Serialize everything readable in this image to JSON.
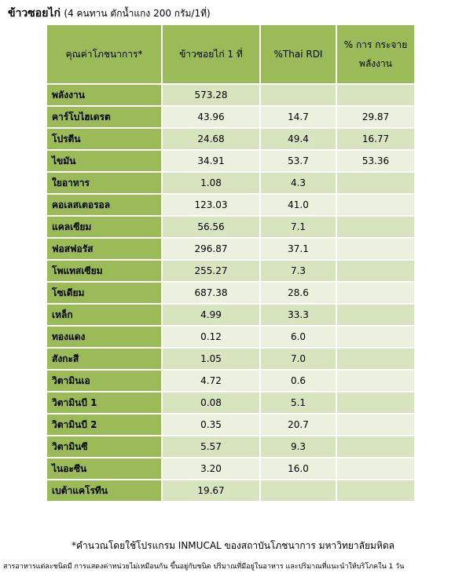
{
  "header": {
    "title": "ข้าวซอยไก่",
    "subtitle": "(4 คนทาน ตักน้ำแกง 200 กรัม/1ที่)"
  },
  "table": {
    "header": [
      "คุณค่าโภชนาการ*",
      "ข้าวซอยไก่ 1 ที่",
      "%Thai RDI",
      "% การ กระจาย พลังงาน"
    ],
    "rows": [
      [
        "พลังงาน",
        "573.28",
        null,
        null
      ],
      [
        "คาร์โบไฮเดรต",
        "43.96",
        "14.7",
        "29.87"
      ],
      [
        "โปรตีน",
        "24.68",
        "49.4",
        "16.77"
      ],
      [
        "ไขมัน",
        "34.91",
        "53.7",
        "53.36"
      ],
      [
        "ใยอาหาร",
        "1.08",
        "4.3",
        null
      ],
      [
        "คอเลสเตอรอล",
        "123.03",
        "41.0",
        null
      ],
      [
        "แคลเซียม",
        "56.56",
        "7.1",
        null
      ],
      [
        "ฟอสฟอรัส",
        "296.87",
        "37.1",
        null
      ],
      [
        "โพแทสเซียม",
        "255.27",
        "7.3",
        null
      ],
      [
        "โซเดียม",
        "687.38",
        "28.6",
        null
      ],
      [
        "เหล็ก",
        "4.99",
        "33.3",
        null
      ],
      [
        "ทองแดง",
        "0.12",
        "6.0",
        null
      ],
      [
        "สังกะสี",
        "1.05",
        "7.0",
        null
      ],
      [
        "วิตามินเอ",
        "4.72",
        "0.6",
        null
      ],
      [
        "วิตามินบี 1",
        "0.08",
        "5.1",
        null
      ],
      [
        "วิตามินบี 2",
        "0.35",
        "20.7",
        null
      ],
      [
        "วิตามินซี",
        "5.57",
        "9.3",
        null
      ],
      [
        "ไนอะซีน",
        "3.20",
        "16.0",
        null
      ],
      [
        "เบต้าแคโรทีน",
        "19.67",
        null,
        null
      ]
    ]
  },
  "footer": {
    "note": "*คำนวณโดยใช้โปรแกรม INMUCAL ของสถาบันโภชนาการ มหาวิทยาลัยมหิดล",
    "disclaimer": "สารอาหารแต่ละชนิดมี การแสดงค่าหน่วยไม่เหมือนกัน ขึ้นอยู่กับชนิด ปริมาณที่มีอยู่ในอาหาร และปริมาณที่แนะนำให้บริโภคใน 1 วัน"
  }
}
